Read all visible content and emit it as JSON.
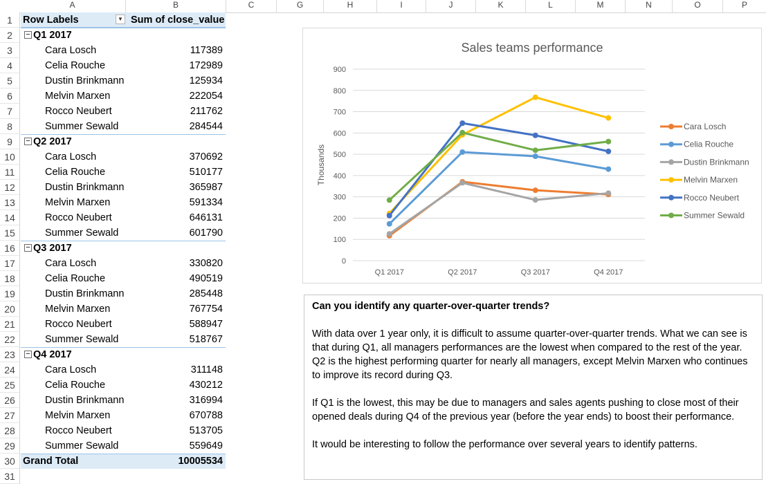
{
  "sheet": {
    "columns": [
      "A",
      "B",
      "C",
      "G",
      "H",
      "I",
      "J",
      "K",
      "L",
      "M",
      "N",
      "O",
      "P"
    ],
    "row_numbers": [
      "1",
      "2",
      "3",
      "4",
      "5",
      "6",
      "7",
      "8",
      "9",
      "10",
      "11",
      "12",
      "13",
      "14",
      "15",
      "16",
      "17",
      "18",
      "19",
      "20",
      "21",
      "22",
      "23",
      "24",
      "25",
      "26",
      "27",
      "28",
      "29",
      "30",
      "31"
    ]
  },
  "pivot": {
    "header_label": "Row Labels",
    "header_value": "Sum of close_value",
    "dropdown_icon": "filter-dropdown",
    "groups": [
      {
        "label": "Q1 2017",
        "rows": [
          {
            "name": "Cara Losch",
            "value": "117389"
          },
          {
            "name": "Celia Rouche",
            "value": "172989"
          },
          {
            "name": "Dustin Brinkmann",
            "value": "125934"
          },
          {
            "name": "Melvin Marxen",
            "value": "222054"
          },
          {
            "name": "Rocco Neubert",
            "value": "211762"
          },
          {
            "name": "Summer Sewald",
            "value": "284544"
          }
        ]
      },
      {
        "label": "Q2 2017",
        "rows": [
          {
            "name": "Cara Losch",
            "value": "370692"
          },
          {
            "name": "Celia Rouche",
            "value": "510177"
          },
          {
            "name": "Dustin Brinkmann",
            "value": "365987"
          },
          {
            "name": "Melvin Marxen",
            "value": "591334"
          },
          {
            "name": "Rocco Neubert",
            "value": "646131"
          },
          {
            "name": "Summer Sewald",
            "value": "601790"
          }
        ]
      },
      {
        "label": "Q3 2017",
        "rows": [
          {
            "name": "Cara Losch",
            "value": "330820"
          },
          {
            "name": "Celia Rouche",
            "value": "490519"
          },
          {
            "name": "Dustin Brinkmann",
            "value": "285448"
          },
          {
            "name": "Melvin Marxen",
            "value": "767754"
          },
          {
            "name": "Rocco Neubert",
            "value": "588947"
          },
          {
            "name": "Summer Sewald",
            "value": "518767"
          }
        ]
      },
      {
        "label": "Q4 2017",
        "rows": [
          {
            "name": "Cara Losch",
            "value": "311148"
          },
          {
            "name": "Celia Rouche",
            "value": "430212"
          },
          {
            "name": "Dustin Brinkmann",
            "value": "316994"
          },
          {
            "name": "Melvin Marxen",
            "value": "670788"
          },
          {
            "name": "Rocco Neubert",
            "value": "513705"
          },
          {
            "name": "Summer Sewald",
            "value": "559649"
          }
        ]
      }
    ],
    "grand_total_label": "Grand Total",
    "grand_total_value": "10005534"
  },
  "chart_data": {
    "type": "line",
    "title": "Sales teams performance",
    "ylabel": "Thousands",
    "xlabel": "",
    "categories": [
      "Q1 2017",
      "Q2 2017",
      "Q3 2017",
      "Q4 2017"
    ],
    "ylim": [
      0,
      900
    ],
    "yticks": [
      "0",
      "100",
      "200",
      "300",
      "400",
      "500",
      "600",
      "700",
      "800",
      "900"
    ],
    "grid": true,
    "legend": "right",
    "series": [
      {
        "name": "Cara Losch",
        "color": "#ed7d31",
        "values": [
          117.389,
          370.692,
          330.82,
          311.148
        ]
      },
      {
        "name": "Celia Rouche",
        "color": "#5b9bd5",
        "values": [
          172.989,
          510.177,
          490.519,
          430.212
        ]
      },
      {
        "name": "Dustin Brinkmann",
        "color": "#a5a5a5",
        "values": [
          125.934,
          365.987,
          285.448,
          316.994
        ]
      },
      {
        "name": "Melvin Marxen",
        "color": "#ffc000",
        "values": [
          222.054,
          591.334,
          767.754,
          670.788
        ]
      },
      {
        "name": "Rocco Neubert",
        "color": "#4472c4",
        "values": [
          211.762,
          646.131,
          588.947,
          513.705
        ]
      },
      {
        "name": "Summer Sewald",
        "color": "#70ad47",
        "values": [
          284.544,
          601.79,
          518.767,
          559.649
        ]
      }
    ]
  },
  "notes": {
    "question": "Can you identify any quarter-over-quarter trends?",
    "paragraphs": [
      "With data over 1 year only, it is difficult to assume quarter-over-quarter trends. What we can see is that during Q1, all managers performances are the lowest when compared to the rest of the year. Q2 is the highest performing quarter for nearly all managers, except Melvin Marxen who continues to improve its record during Q3.",
      "If Q1 is the lowest, this may be due to managers and sales agents pushing to close most of their opened deals during Q4 of the previous year (before the year ends) to boost their performance.",
      "It would be interesting to follow the performance over several years to identify patterns."
    ]
  }
}
